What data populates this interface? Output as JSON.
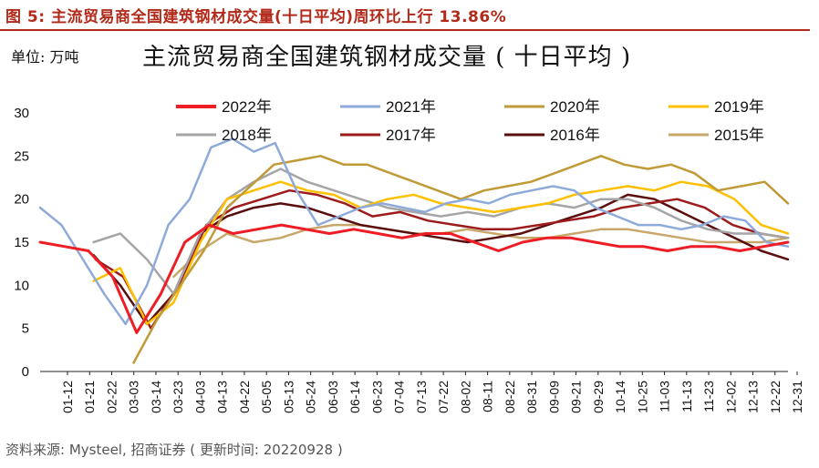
{
  "figure_label": "图 5:  主流贸易商全国建筑钢材成交量(十日平均)周环比上行 13.86%",
  "unit_label": "单位:  万吨",
  "source": "资料来源:  Mysteel, 招商证券 ( 更新时间:  20220928 )",
  "colors": {
    "2022年": "#ee1c25",
    "2021年": "#8eaadb",
    "2020年": "#bf9a37",
    "2019年": "#ffc000",
    "2018年": "#a5a5a5",
    "2017年": "#9e1b1b",
    "2016年": "#5a0d0d",
    "2015年": "#c8a86a",
    "accent": "#b22a1a"
  },
  "chart_data": {
    "type": "line",
    "title": "主流贸易商全国建筑钢材成交量 ( 十日平均 )",
    "xlabel": "",
    "ylabel": "万吨",
    "ylim": [
      0,
      30
    ],
    "yticks": [
      "0",
      "5",
      "10",
      "15",
      "20",
      "25",
      "30"
    ],
    "x_tick_labels": [
      "01-12",
      "01-21",
      "02-22",
      "03-03",
      "03-14",
      "03-23",
      "04-03",
      "04-13",
      "04-22",
      "05-05",
      "05-13",
      "05-24",
      "06-03",
      "06-14",
      "06-23",
      "07-04",
      "07-13",
      "07-22",
      "08-02",
      "08-11",
      "08-22",
      "08-31",
      "09-09",
      "09-21",
      "09-29",
      "10-14",
      "10-25",
      "11-03",
      "11-13",
      "11-23",
      "12-02",
      "12-13",
      "12-22",
      "12-31"
    ],
    "legend": [
      "2022年",
      "2021年",
      "2020年",
      "2019年",
      "2018年",
      "2017年",
      "2016年",
      "2015年"
    ],
    "series": [
      {
        "name": "2022年",
        "values": [
          15.0,
          14.5,
          14.0,
          11.0,
          4.5,
          9.0,
          15.0,
          17.0,
          16.0,
          16.5,
          17.0,
          16.5,
          16.0,
          16.5,
          16.0,
          15.5,
          16.0,
          16.0,
          15.0,
          14.0,
          15.0,
          15.5,
          15.5,
          15.0,
          14.5,
          14.5,
          14.0,
          14.5,
          14.5,
          14.0,
          14.5,
          15.0
        ]
      },
      {
        "name": "2021年",
        "values": [
          19.0,
          17.0,
          13.0,
          9.0,
          5.5,
          10.0,
          17.0,
          20.0,
          26.0,
          27.0,
          25.5,
          26.5,
          21.0,
          17.0,
          18.0,
          19.0,
          19.5,
          19.0,
          18.5,
          19.5,
          20.0,
          19.5,
          20.5,
          21.0,
          21.5,
          21.0,
          19.0,
          18.0,
          17.0,
          17.0,
          16.5,
          17.0,
          18.0,
          17.5,
          15.0,
          14.5
        ]
      },
      {
        "name": "2020年",
        "values": [
          null,
          null,
          null,
          null,
          1.0,
          6.0,
          10.0,
          14.0,
          19.0,
          21.5,
          24.0,
          24.5,
          25.0,
          24.0,
          24.0,
          23.0,
          22.0,
          21.0,
          20.0,
          21.0,
          21.5,
          22.0,
          23.0,
          24.0,
          25.0,
          24.0,
          23.5,
          24.0,
          23.0,
          21.0,
          21.5,
          22.0,
          19.5
        ]
      },
      {
        "name": "2019年",
        "values": [
          null,
          null,
          10.5,
          12.0,
          5.5,
          8.0,
          15.0,
          20.0,
          21.0,
          22.0,
          21.0,
          20.5,
          19.0,
          20.0,
          20.5,
          19.5,
          19.0,
          18.5,
          19.0,
          19.5,
          20.5,
          21.0,
          21.5,
          21.0,
          22.0,
          21.5,
          20.0,
          17.0,
          16.0
        ]
      },
      {
        "name": "2018年",
        "values": [
          null,
          null,
          15.0,
          16.0,
          13.0,
          9.0,
          16.0,
          20.0,
          22.0,
          23.5,
          22.0,
          21.0,
          20.0,
          19.0,
          18.5,
          18.0,
          18.5,
          18.0,
          19.0,
          19.5,
          19.0,
          20.0,
          20.0,
          19.0,
          17.5,
          16.5,
          16.0,
          16.0,
          15.5
        ]
      },
      {
        "name": "2017年",
        "values": [
          null,
          null,
          13.0,
          11.0,
          5.0,
          10.0,
          17.0,
          19.0,
          20.0,
          21.0,
          20.5,
          19.5,
          18.0,
          18.5,
          17.5,
          17.0,
          16.5,
          16.5,
          17.0,
          17.5,
          18.0,
          19.0,
          19.5,
          20.0,
          19.0,
          17.0,
          16.0,
          15.5
        ]
      },
      {
        "name": "2016年",
        "values": [
          null,
          null,
          13.5,
          10.0,
          5.5,
          9.0,
          16.0,
          18.0,
          19.0,
          19.5,
          19.0,
          18.0,
          17.0,
          16.5,
          16.0,
          15.5,
          15.0,
          15.5,
          16.0,
          17.0,
          18.0,
          19.0,
          20.5,
          20.0,
          18.5,
          17.0,
          15.5,
          14.0,
          13.0
        ]
      },
      {
        "name": "2015年",
        "values": [
          null,
          null,
          null,
          null,
          null,
          11.0,
          14.0,
          16.0,
          15.0,
          15.5,
          16.5,
          17.0,
          17.0,
          16.5,
          16.0,
          16.0,
          16.5,
          16.0,
          15.5,
          15.5,
          16.0,
          16.5,
          16.5,
          16.0,
          15.5,
          15.0,
          15.0,
          15.0,
          15.5
        ]
      }
    ]
  }
}
